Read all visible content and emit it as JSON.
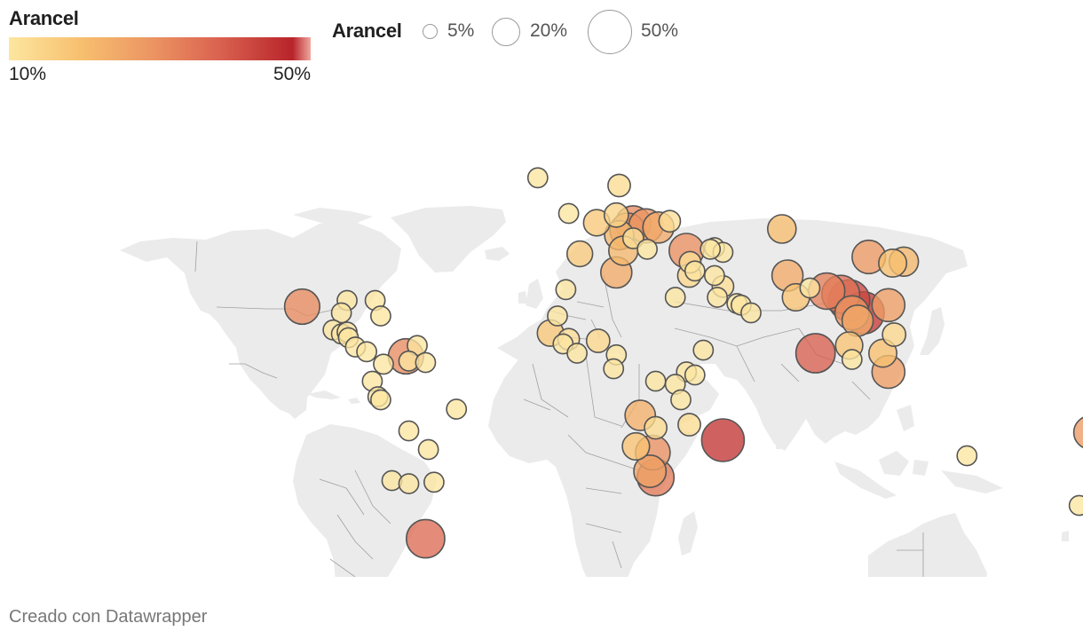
{
  "legend_color": {
    "title": "Arancel",
    "min_label": "10%",
    "max_label": "50%",
    "stops": [
      "#fde6a0",
      "#f7c06f",
      "#ec9663",
      "#d9604f",
      "#b8242a",
      "#f0a8a0"
    ]
  },
  "legend_size": {
    "title": "Arancel",
    "items": [
      {
        "label": "5%",
        "value": 5
      },
      {
        "label": "20%",
        "value": 20
      },
      {
        "label": "50%",
        "value": 50
      }
    ]
  },
  "credit": "Creado con Datawrapper",
  "map": {
    "land_color": "#ebebeb",
    "border_color": "#a0a0a0",
    "bubble_stroke": "#555555",
    "points": [
      {
        "lon": -103,
        "lat": 23,
        "value": 32
      },
      {
        "lon": -87,
        "lat": 25,
        "value": 10
      },
      {
        "lon": -89,
        "lat": 21,
        "value": 10
      },
      {
        "lon": -77,
        "lat": 25,
        "value": 10
      },
      {
        "lon": -75,
        "lat": 20,
        "value": 10
      },
      {
        "lon": -92,
        "lat": 15.5,
        "value": 10
      },
      {
        "lon": -89,
        "lat": 14.2,
        "value": 10
      },
      {
        "lon": -87,
        "lat": 14.8,
        "value": 10
      },
      {
        "lon": -86.5,
        "lat": 13,
        "value": 10
      },
      {
        "lon": -84,
        "lat": 10,
        "value": 10
      },
      {
        "lon": -80,
        "lat": 8.5,
        "value": 10
      },
      {
        "lon": -74,
        "lat": 4.5,
        "value": 10
      },
      {
        "lon": -66,
        "lat": 7,
        "value": 32
      },
      {
        "lon": -62,
        "lat": 10.5,
        "value": 10
      },
      {
        "lon": -65,
        "lat": 5.5,
        "value": 10
      },
      {
        "lon": -59,
        "lat": 5,
        "value": 10
      },
      {
        "lon": -78,
        "lat": -1,
        "value": 10
      },
      {
        "lon": -76,
        "lat": -6,
        "value": 10
      },
      {
        "lon": -75,
        "lat": -7,
        "value": 10
      },
      {
        "lon": -65,
        "lat": -17,
        "value": 10
      },
      {
        "lon": -48,
        "lat": -10,
        "value": 10
      },
      {
        "lon": -58,
        "lat": -23,
        "value": 10
      },
      {
        "lon": -71,
        "lat": -33,
        "value": 10
      },
      {
        "lon": -65,
        "lat": -34,
        "value": 10
      },
      {
        "lon": -56,
        "lat": -33.5,
        "value": 10
      },
      {
        "lon": -59,
        "lat": -51.7,
        "value": 38
      },
      {
        "lon": -19,
        "lat": 64.5,
        "value": 10
      },
      {
        "lon": 10,
        "lat": 62,
        "value": 13
      },
      {
        "lon": -8,
        "lat": 53,
        "value": 10
      },
      {
        "lon": 9,
        "lat": 52.5,
        "value": 15
      },
      {
        "lon": 2,
        "lat": 50,
        "value": 18
      },
      {
        "lon": 15,
        "lat": 49.8,
        "value": 32
      },
      {
        "lon": 19.5,
        "lat": 49,
        "value": 30
      },
      {
        "lon": 24,
        "lat": 48.5,
        "value": 25
      },
      {
        "lon": 28,
        "lat": 50.5,
        "value": 12
      },
      {
        "lon": 13,
        "lat": 47.5,
        "value": 32
      },
      {
        "lon": 10,
        "lat": 46,
        "value": 22
      },
      {
        "lon": 15,
        "lat": 45,
        "value": 11
      },
      {
        "lon": -4,
        "lat": 40,
        "value": 17
      },
      {
        "lon": 11.5,
        "lat": 41,
        "value": 22
      },
      {
        "lon": 20,
        "lat": 41.5,
        "value": 10
      },
      {
        "lon": 34,
        "lat": 41,
        "value": 31
      },
      {
        "lon": 44,
        "lat": 42,
        "value": 10
      },
      {
        "lon": 47,
        "lat": 40.5,
        "value": 10
      },
      {
        "lon": 42.5,
        "lat": 41.5,
        "value": 10
      },
      {
        "lon": 35,
        "lat": 33,
        "value": 14
      },
      {
        "lon": 35.3,
        "lat": 37.3,
        "value": 12
      },
      {
        "lon": 37,
        "lat": 34.5,
        "value": 10
      },
      {
        "lon": 30,
        "lat": 26,
        "value": 10
      },
      {
        "lon": 47,
        "lat": 29.5,
        "value": 12
      },
      {
        "lon": 44,
        "lat": 33,
        "value": 10
      },
      {
        "lon": 52,
        "lat": 24,
        "value": 10
      },
      {
        "lon": 53.5,
        "lat": 23.5,
        "value": 10
      },
      {
        "lon": 57,
        "lat": 21,
        "value": 10
      },
      {
        "lon": 45,
        "lat": 26,
        "value": 10
      },
      {
        "lon": 68,
        "lat": 48,
        "value": 21
      },
      {
        "lon": -9,
        "lat": 28.5,
        "value": 10
      },
      {
        "lon": 9,
        "lat": 34,
        "value": 25
      },
      {
        "lon": -12,
        "lat": 20,
        "value": 10
      },
      {
        "lon": -14.5,
        "lat": 14.5,
        "value": 18
      },
      {
        "lon": -10,
        "lat": 11,
        "value": 10
      },
      {
        "lon": -8,
        "lat": 12.5,
        "value": 12
      },
      {
        "lon": -5,
        "lat": 8,
        "value": 10
      },
      {
        "lon": 2.5,
        "lat": 12,
        "value": 14
      },
      {
        "lon": 9,
        "lat": 7.5,
        "value": 10
      },
      {
        "lon": 8,
        "lat": 3,
        "value": 10
      },
      {
        "lon": 23,
        "lat": -1,
        "value": 10
      },
      {
        "lon": 40,
        "lat": 9,
        "value": 10
      },
      {
        "lon": 34,
        "lat": 2,
        "value": 10
      },
      {
        "lon": 37,
        "lat": 1,
        "value": 10
      },
      {
        "lon": 30,
        "lat": -2,
        "value": 10
      },
      {
        "lon": 32,
        "lat": -7,
        "value": 10
      },
      {
        "lon": 35,
        "lat": -15,
        "value": 13
      },
      {
        "lon": 17.5,
        "lat": -12,
        "value": 24
      },
      {
        "lon": 23,
        "lat": -16,
        "value": 13
      },
      {
        "lon": 16,
        "lat": -22,
        "value": 19
      },
      {
        "lon": 22,
        "lat": -24,
        "value": 31
      },
      {
        "lon": 21,
        "lat": -30,
        "value": 27
      },
      {
        "lon": 23,
        "lat": -32,
        "value": 35
      },
      {
        "lon": 47,
        "lat": -20,
        "value": 47
      },
      {
        "lon": 70,
        "lat": 33,
        "value": 25
      },
      {
        "lon": 78,
        "lat": 29,
        "value": 10
      },
      {
        "lon": 73,
        "lat": 26,
        "value": 19
      },
      {
        "lon": 80,
        "lat": 8,
        "value": 40
      },
      {
        "lon": 84,
        "lat": 28,
        "value": 34
      },
      {
        "lon": 89,
        "lat": 27,
        "value": 37
      },
      {
        "lon": 92,
        "lat": 25,
        "value": 44
      },
      {
        "lon": 97,
        "lat": 21,
        "value": 46
      },
      {
        "lon": 93,
        "lat": 21,
        "value": 30
      },
      {
        "lon": 95,
        "lat": 18.5,
        "value": 25
      },
      {
        "lon": 99,
        "lat": 39,
        "value": 29
      },
      {
        "lon": 107.5,
        "lat": 37,
        "value": 20
      },
      {
        "lon": 111.5,
        "lat": 37.5,
        "value": 22
      },
      {
        "lon": 106,
        "lat": 23.5,
        "value": 28
      },
      {
        "lon": 108,
        "lat": 14,
        "value": 14
      },
      {
        "lon": 92,
        "lat": 10.5,
        "value": 19
      },
      {
        "lon": 93,
        "lat": 6,
        "value": 10
      },
      {
        "lon": 104,
        "lat": 8,
        "value": 20
      },
      {
        "lon": 106,
        "lat": 2,
        "value": 28
      },
      {
        "lon": 134,
        "lat": -25,
        "value": 10
      },
      {
        "lon": 174,
        "lat": -41,
        "value": 10
      },
      {
        "lon": 178,
        "lat": -17.5,
        "value": 29
      }
    ]
  }
}
